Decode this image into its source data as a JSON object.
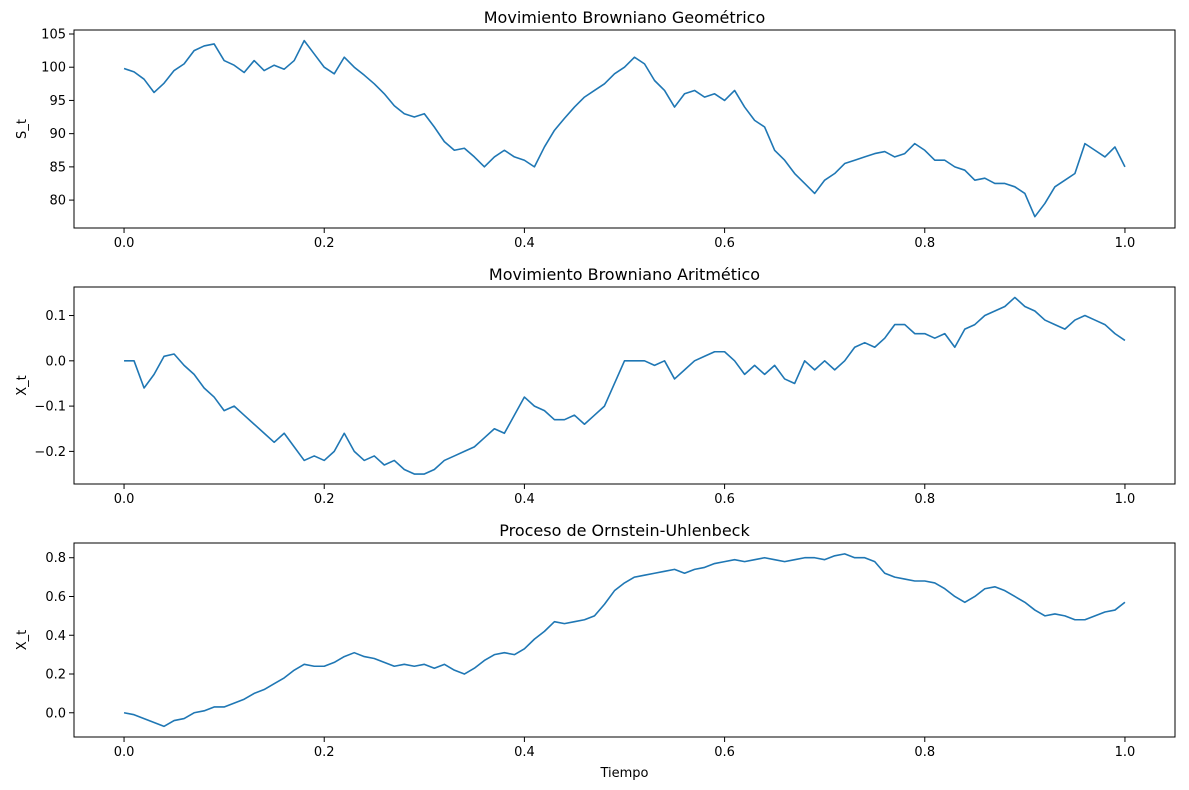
{
  "chart_data": [
    {
      "type": "line",
      "title": "Movimiento Browniano Geométrico",
      "xlabel": "",
      "ylabel": "S_t",
      "xlim": [
        -0.05,
        1.05
      ],
      "ylim": [
        75.8,
        105.6
      ],
      "x_ticks": [
        {
          "value": 0.0,
          "label": "0.0"
        },
        {
          "value": 0.2,
          "label": "0.2"
        },
        {
          "value": 0.4,
          "label": "0.4"
        },
        {
          "value": 0.6,
          "label": "0.6"
        },
        {
          "value": 0.8,
          "label": "0.8"
        },
        {
          "value": 1.0,
          "label": "1.0"
        }
      ],
      "y_ticks": [
        {
          "value": 80,
          "label": "80"
        },
        {
          "value": 85,
          "label": "85"
        },
        {
          "value": 90,
          "label": "90"
        },
        {
          "value": 95,
          "label": "95"
        },
        {
          "value": 100,
          "label": "100"
        },
        {
          "value": 105,
          "label": "105"
        }
      ],
      "grid": false,
      "color": "#1f77b4",
      "series": [
        {
          "x": [
            0.0,
            0.01,
            0.02,
            0.03,
            0.04,
            0.05,
            0.06,
            0.07,
            0.08,
            0.09,
            0.1,
            0.11,
            0.12,
            0.13,
            0.14,
            0.15,
            0.16,
            0.17,
            0.18,
            0.19,
            0.2,
            0.21,
            0.22,
            0.23,
            0.24,
            0.25,
            0.26,
            0.27,
            0.28,
            0.29,
            0.3,
            0.31,
            0.32,
            0.33,
            0.34,
            0.35,
            0.36,
            0.37,
            0.38,
            0.39,
            0.4,
            0.41,
            0.42,
            0.43,
            0.44,
            0.45,
            0.46,
            0.47,
            0.48,
            0.49,
            0.5,
            0.51,
            0.52,
            0.53,
            0.54,
            0.55,
            0.56,
            0.57,
            0.58,
            0.59,
            0.6,
            0.61,
            0.62,
            0.63,
            0.64,
            0.65,
            0.66,
            0.67,
            0.68,
            0.69,
            0.7,
            0.71,
            0.72,
            0.73,
            0.74,
            0.75,
            0.76,
            0.77,
            0.78,
            0.79,
            0.8,
            0.81,
            0.82,
            0.83,
            0.84,
            0.85,
            0.86,
            0.87,
            0.88,
            0.89,
            0.9,
            0.91,
            0.92,
            0.93,
            0.94,
            0.95,
            0.96,
            0.97,
            0.98,
            0.99,
            1.0
          ],
          "y": [
            99.8,
            99.3,
            98.2,
            96.2,
            97.6,
            99.5,
            100.5,
            102.5,
            103.2,
            103.5,
            101.0,
            100.3,
            99.2,
            101.0,
            99.5,
            100.3,
            99.7,
            101.0,
            104.0,
            102.0,
            100.0,
            99.0,
            101.5,
            100.0,
            98.8,
            97.5,
            96.0,
            94.2,
            93.0,
            92.5,
            93.0,
            91.0,
            88.8,
            87.5,
            87.8,
            86.5,
            85.0,
            86.5,
            87.5,
            86.5,
            86.0,
            85.0,
            88.0,
            90.5,
            92.3,
            94.0,
            95.5,
            96.5,
            97.5,
            99.0,
            100.0,
            101.5,
            100.5,
            98.0,
            96.5,
            94.0,
            96.0,
            96.5,
            95.5,
            96.0,
            95.0,
            96.5,
            94.0,
            92.0,
            91.0,
            87.5,
            86.0,
            84.0,
            82.5,
            81.0,
            83.0,
            84.0,
            85.5,
            86.0,
            86.5,
            87.0,
            87.3,
            86.5,
            87.0,
            88.5,
            87.5,
            86.0,
            86.0,
            85.0,
            84.5,
            83.0,
            83.3,
            82.5,
            82.5,
            82.0,
            81.0,
            77.5,
            79.5,
            82.0,
            83.0,
            84.0,
            88.5,
            87.5,
            86.5,
            88.0,
            85.0
          ]
        }
      ]
    },
    {
      "type": "line",
      "title": "Movimiento Browniano Aritmético",
      "xlabel": "",
      "ylabel": "X_t",
      "xlim": [
        -0.05,
        1.05
      ],
      "ylim": [
        -0.272,
        0.163
      ],
      "x_ticks": [
        {
          "value": 0.0,
          "label": "0.0"
        },
        {
          "value": 0.2,
          "label": "0.2"
        },
        {
          "value": 0.4,
          "label": "0.4"
        },
        {
          "value": 0.6,
          "label": "0.6"
        },
        {
          "value": 0.8,
          "label": "0.8"
        },
        {
          "value": 1.0,
          "label": "1.0"
        }
      ],
      "y_ticks": [
        {
          "value": -0.2,
          "label": "−0.2"
        },
        {
          "value": -0.1,
          "label": "−0.1"
        },
        {
          "value": 0.0,
          "label": "0.0"
        },
        {
          "value": 0.1,
          "label": "0.1"
        }
      ],
      "grid": false,
      "color": "#1f77b4",
      "series": [
        {
          "x": [
            0.0,
            0.01,
            0.02,
            0.03,
            0.04,
            0.05,
            0.06,
            0.07,
            0.08,
            0.09,
            0.1,
            0.11,
            0.12,
            0.13,
            0.14,
            0.15,
            0.16,
            0.17,
            0.18,
            0.19,
            0.2,
            0.21,
            0.22,
            0.23,
            0.24,
            0.25,
            0.26,
            0.27,
            0.28,
            0.29,
            0.3,
            0.31,
            0.32,
            0.33,
            0.34,
            0.35,
            0.36,
            0.37,
            0.38,
            0.39,
            0.4,
            0.41,
            0.42,
            0.43,
            0.44,
            0.45,
            0.46,
            0.47,
            0.48,
            0.49,
            0.5,
            0.51,
            0.52,
            0.53,
            0.54,
            0.55,
            0.56,
            0.57,
            0.58,
            0.59,
            0.6,
            0.61,
            0.62,
            0.63,
            0.64,
            0.65,
            0.66,
            0.67,
            0.68,
            0.69,
            0.7,
            0.71,
            0.72,
            0.73,
            0.74,
            0.75,
            0.76,
            0.77,
            0.78,
            0.79,
            0.8,
            0.81,
            0.82,
            0.83,
            0.84,
            0.85,
            0.86,
            0.87,
            0.88,
            0.89,
            0.9,
            0.91,
            0.92,
            0.93,
            0.94,
            0.95,
            0.96,
            0.97,
            0.98,
            0.99,
            1.0
          ],
          "y": [
            0.0,
            0.0,
            -0.06,
            -0.03,
            0.01,
            0.015,
            -0.01,
            -0.03,
            -0.06,
            -0.08,
            -0.11,
            -0.1,
            -0.12,
            -0.14,
            -0.16,
            -0.18,
            -0.16,
            -0.19,
            -0.22,
            -0.21,
            -0.22,
            -0.2,
            -0.16,
            -0.2,
            -0.22,
            -0.21,
            -0.23,
            -0.22,
            -0.24,
            -0.25,
            -0.25,
            -0.24,
            -0.22,
            -0.21,
            -0.2,
            -0.19,
            -0.17,
            -0.15,
            -0.16,
            -0.12,
            -0.08,
            -0.1,
            -0.11,
            -0.13,
            -0.13,
            -0.12,
            -0.14,
            -0.12,
            -0.1,
            -0.05,
            0.0,
            0.0,
            0.0,
            -0.01,
            0.0,
            -0.04,
            -0.02,
            0.0,
            0.01,
            0.02,
            0.02,
            0.0,
            -0.03,
            -0.01,
            -0.03,
            -0.01,
            -0.04,
            -0.05,
            0.0,
            -0.02,
            0.0,
            -0.02,
            0.0,
            0.03,
            0.04,
            0.03,
            0.05,
            0.08,
            0.08,
            0.06,
            0.06,
            0.05,
            0.06,
            0.03,
            0.07,
            0.08,
            0.1,
            0.11,
            0.12,
            0.14,
            0.12,
            0.11,
            0.09,
            0.08,
            0.07,
            0.09,
            0.1,
            0.09,
            0.08,
            0.06,
            0.045
          ]
        }
      ]
    },
    {
      "type": "line",
      "title": "Proceso de Ornstein-Uhlenbeck",
      "xlabel": "Tiempo",
      "ylabel": "X_t",
      "xlim": [
        -0.05,
        1.05
      ],
      "ylim": [
        -0.125,
        0.876
      ],
      "x_ticks": [
        {
          "value": 0.0,
          "label": "0.0"
        },
        {
          "value": 0.2,
          "label": "0.2"
        },
        {
          "value": 0.4,
          "label": "0.4"
        },
        {
          "value": 0.6,
          "label": "0.6"
        },
        {
          "value": 0.8,
          "label": "0.8"
        },
        {
          "value": 1.0,
          "label": "1.0"
        }
      ],
      "y_ticks": [
        {
          "value": 0.0,
          "label": "0.0"
        },
        {
          "value": 0.2,
          "label": "0.2"
        },
        {
          "value": 0.4,
          "label": "0.4"
        },
        {
          "value": 0.6,
          "label": "0.6"
        },
        {
          "value": 0.8,
          "label": "0.8"
        }
      ],
      "grid": false,
      "color": "#1f77b4",
      "series": [
        {
          "x": [
            0.0,
            0.01,
            0.02,
            0.03,
            0.04,
            0.05,
            0.06,
            0.07,
            0.08,
            0.09,
            0.1,
            0.11,
            0.12,
            0.13,
            0.14,
            0.15,
            0.16,
            0.17,
            0.18,
            0.19,
            0.2,
            0.21,
            0.22,
            0.23,
            0.24,
            0.25,
            0.26,
            0.27,
            0.28,
            0.29,
            0.3,
            0.31,
            0.32,
            0.33,
            0.34,
            0.35,
            0.36,
            0.37,
            0.38,
            0.39,
            0.4,
            0.41,
            0.42,
            0.43,
            0.44,
            0.45,
            0.46,
            0.47,
            0.48,
            0.49,
            0.5,
            0.51,
            0.52,
            0.53,
            0.54,
            0.55,
            0.56,
            0.57,
            0.58,
            0.59,
            0.6,
            0.61,
            0.62,
            0.63,
            0.64,
            0.65,
            0.66,
            0.67,
            0.68,
            0.69,
            0.7,
            0.71,
            0.72,
            0.73,
            0.74,
            0.75,
            0.76,
            0.77,
            0.78,
            0.79,
            0.8,
            0.81,
            0.82,
            0.83,
            0.84,
            0.85,
            0.86,
            0.87,
            0.88,
            0.89,
            0.9,
            0.91,
            0.92,
            0.93,
            0.94,
            0.95,
            0.96,
            0.97,
            0.98,
            0.99,
            1.0
          ],
          "y": [
            0.0,
            -0.01,
            -0.03,
            -0.05,
            -0.07,
            -0.04,
            -0.03,
            0.0,
            0.01,
            0.03,
            0.03,
            0.05,
            0.07,
            0.1,
            0.12,
            0.15,
            0.18,
            0.22,
            0.25,
            0.24,
            0.24,
            0.26,
            0.29,
            0.31,
            0.29,
            0.28,
            0.26,
            0.24,
            0.25,
            0.24,
            0.25,
            0.23,
            0.25,
            0.22,
            0.2,
            0.23,
            0.27,
            0.3,
            0.31,
            0.3,
            0.33,
            0.38,
            0.42,
            0.47,
            0.46,
            0.47,
            0.48,
            0.5,
            0.56,
            0.63,
            0.67,
            0.7,
            0.71,
            0.72,
            0.73,
            0.74,
            0.72,
            0.74,
            0.75,
            0.77,
            0.78,
            0.79,
            0.78,
            0.79,
            0.8,
            0.79,
            0.78,
            0.79,
            0.8,
            0.8,
            0.79,
            0.81,
            0.82,
            0.8,
            0.8,
            0.78,
            0.72,
            0.7,
            0.69,
            0.68,
            0.68,
            0.67,
            0.64,
            0.6,
            0.57,
            0.6,
            0.64,
            0.65,
            0.63,
            0.6,
            0.57,
            0.53,
            0.5,
            0.51,
            0.5,
            0.48,
            0.48,
            0.5,
            0.52,
            0.53,
            0.57
          ]
        }
      ]
    }
  ]
}
